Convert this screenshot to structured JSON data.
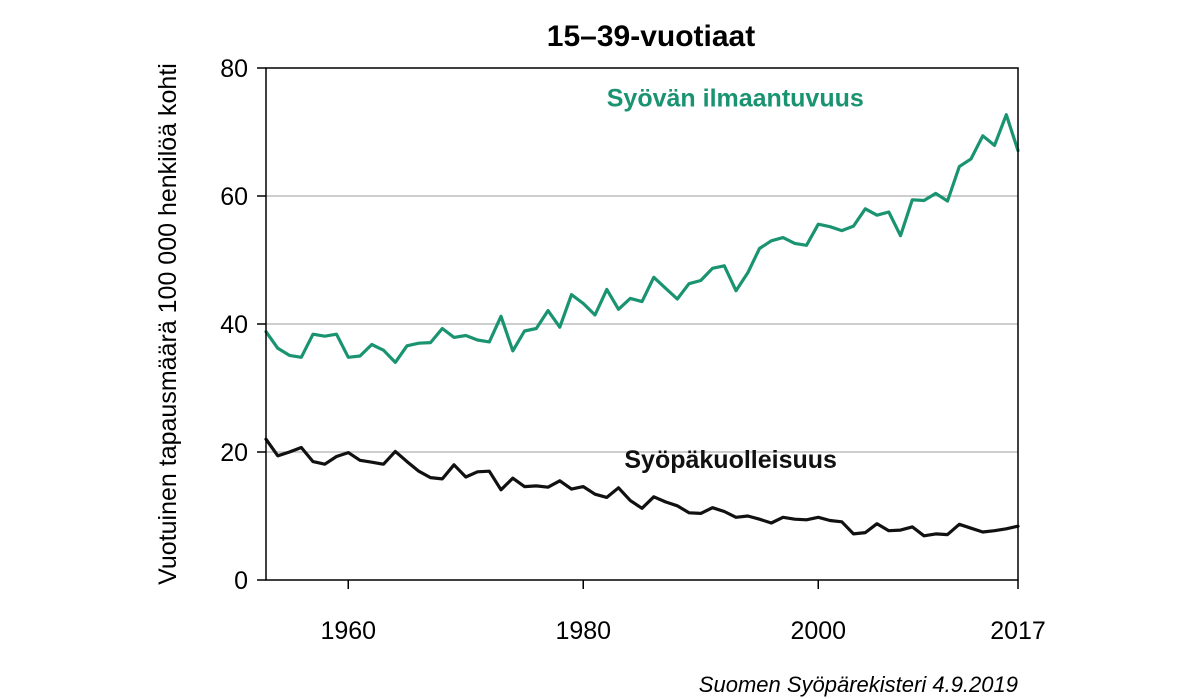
{
  "chart_data": {
    "type": "line",
    "title": "15–39-vuotiaat",
    "ylabel": "Vuotuinen tapausmäärä 100 000 henkilöä kohti",
    "xlabel": "",
    "xlim": [
      1953,
      2017
    ],
    "ylim": [
      0,
      80
    ],
    "x_ticks": [
      1960,
      1980,
      2000,
      2017
    ],
    "y_ticks": [
      0,
      20,
      40,
      60,
      80
    ],
    "grid": "horizontal",
    "source": "Suomen Syöpärekisteri 4.9.2019",
    "x": [
      1953,
      1954,
      1955,
      1956,
      1957,
      1958,
      1959,
      1960,
      1961,
      1962,
      1963,
      1964,
      1965,
      1966,
      1967,
      1968,
      1969,
      1970,
      1971,
      1972,
      1973,
      1974,
      1975,
      1976,
      1977,
      1978,
      1979,
      1980,
      1981,
      1982,
      1983,
      1984,
      1985,
      1986,
      1987,
      1988,
      1989,
      1990,
      1991,
      1992,
      1993,
      1994,
      1995,
      1996,
      1997,
      1998,
      1999,
      2000,
      2001,
      2002,
      2003,
      2004,
      2005,
      2006,
      2007,
      2008,
      2009,
      2010,
      2011,
      2012,
      2013,
      2014,
      2015,
      2016,
      2017
    ],
    "series": [
      {
        "name": "Syövän ilmaantuvuus",
        "color": "#1a9470",
        "label_value": [
          1982,
          74
        ],
        "values": [
          38.8,
          36.2,
          35.1,
          34.8,
          38.4,
          38.1,
          38.4,
          34.8,
          35.0,
          36.8,
          35.9,
          34.0,
          36.6,
          37.0,
          37.1,
          39.3,
          37.9,
          38.2,
          37.5,
          37.2,
          41.2,
          35.8,
          38.9,
          39.3,
          42.1,
          39.5,
          44.6,
          43.2,
          41.4,
          45.4,
          42.3,
          44.0,
          43.5,
          47.3,
          45.6,
          43.9,
          46.3,
          46.8,
          48.7,
          49.1,
          45.2,
          48.0,
          51.8,
          53.0,
          53.5,
          52.6,
          52.3,
          55.6,
          55.2,
          54.6,
          55.3,
          58.0,
          57.0,
          57.5,
          53.8,
          59.4,
          59.3,
          60.4,
          59.2,
          64.6,
          65.8,
          69.4,
          67.9,
          72.7,
          67.1
        ]
      },
      {
        "name": "Syöpäkuolleisuus",
        "color": "#111111",
        "label_value": [
          1983.5,
          17.5
        ],
        "values": [
          22.0,
          19.4,
          20.0,
          20.7,
          18.5,
          18.1,
          19.3,
          19.9,
          18.7,
          18.4,
          18.1,
          20.1,
          18.5,
          17.0,
          16.0,
          15.8,
          18.0,
          16.1,
          16.9,
          17.0,
          14.1,
          15.9,
          14.6,
          14.7,
          14.5,
          15.5,
          14.2,
          14.6,
          13.4,
          12.9,
          14.4,
          12.4,
          11.2,
          13.0,
          12.2,
          11.6,
          10.5,
          10.4,
          11.3,
          10.7,
          9.8,
          10.0,
          9.5,
          8.9,
          9.8,
          9.5,
          9.4,
          9.8,
          9.3,
          9.1,
          7.2,
          7.4,
          8.8,
          7.7,
          7.8,
          8.3,
          6.9,
          7.2,
          7.1,
          8.7,
          8.1,
          7.5,
          7.7,
          8.0,
          8.4
        ]
      }
    ]
  }
}
